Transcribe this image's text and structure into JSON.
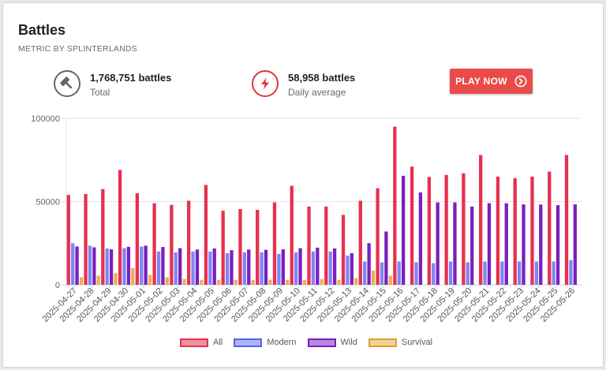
{
  "card": {
    "title": "Battles",
    "subtitle": "METRIC BY SPLINTERLANDS"
  },
  "stats": {
    "total": {
      "value": "1,768,751 battles",
      "label": "Total",
      "icon": "gavel-icon"
    },
    "average": {
      "value": "58,958 battles",
      "label": "Daily average",
      "icon": "lightning-icon"
    }
  },
  "play_button": {
    "label": "PLAY NOW",
    "icon": "chevron-right-circle-icon"
  },
  "colors": {
    "all": "#e8304f",
    "modern": "#7c86f4",
    "wild": "#7a1fbf",
    "survival": "#e6b350",
    "button": "#e94b4b"
  },
  "chart_data": {
    "type": "bar",
    "title": "Battles",
    "xlabel": "",
    "ylabel": "",
    "ylim": [
      0,
      100000
    ],
    "yticks": [
      "0",
      "50000",
      "100000"
    ],
    "grid": true,
    "legend_position": "bottom",
    "categories": [
      "2025-04-27",
      "2025-04-28",
      "2025-04-29",
      "2025-04-30",
      "2025-05-01",
      "2025-05-02",
      "2025-05-03",
      "2025-05-04",
      "2025-05-05",
      "2025-05-06",
      "2025-05-07",
      "2025-05-08",
      "2025-05-09",
      "2025-05-10",
      "2025-05-11",
      "2025-05-12",
      "2025-05-13",
      "2025-05-14",
      "2025-05-15",
      "2025-05-16",
      "2025-05-17",
      "2025-05-18",
      "2025-05-19",
      "2025-05-20",
      "2025-05-21",
      "2025-05-22",
      "2025-05-23",
      "2025-05-24",
      "2025-05-25",
      "2025-05-26"
    ],
    "series": [
      {
        "name": "All",
        "values": [
          54000,
          54500,
          57500,
          69000,
          55000,
          49000,
          48000,
          50500,
          60000,
          44500,
          45500,
          45000,
          49500,
          59500,
          47000,
          47000,
          42000,
          50500,
          58000,
          95000,
          71000,
          64800,
          66000,
          67000,
          78000,
          65000,
          64000,
          65000,
          68000,
          78000
        ]
      },
      {
        "name": "Modern",
        "values": [
          25000,
          23500,
          21800,
          22000,
          23000,
          20000,
          19500,
          20000,
          20000,
          19000,
          19500,
          19500,
          18500,
          19500,
          20000,
          20000,
          17500,
          14000,
          13500,
          14000,
          13500,
          13000,
          14000,
          13500,
          14000,
          14000,
          14000,
          14000,
          14000,
          14800
        ]
      },
      {
        "name": "Wild",
        "values": [
          23000,
          22500,
          21300,
          22800,
          23500,
          22700,
          22000,
          21200,
          21800,
          20800,
          21200,
          21000,
          21300,
          22000,
          22300,
          21800,
          19000,
          25000,
          32000,
          65500,
          55500,
          49500,
          49500,
          47000,
          49000,
          49000,
          48300,
          48200,
          47800,
          48300
        ]
      },
      {
        "name": "Survival",
        "values": [
          4500,
          5500,
          7000,
          10000,
          6000,
          4500,
          3500,
          3000,
          3000,
          3000,
          3000,
          3000,
          3000,
          3000,
          3500,
          3000,
          4000,
          8500,
          5500,
          0,
          0,
          0,
          0,
          0,
          0,
          0,
          0,
          0,
          0,
          0
        ]
      }
    ]
  }
}
